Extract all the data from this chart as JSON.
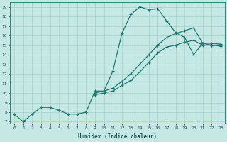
{
  "xlabel": "Humidex (Indice chaleur)",
  "background_color": "#c5e8e5",
  "grid_color": "#a8d4d0",
  "line_color": "#1e7870",
  "xlim": [
    -0.5,
    23.5
  ],
  "ylim": [
    6.8,
    19.5
  ],
  "x_ticks": [
    0,
    1,
    2,
    3,
    4,
    5,
    6,
    7,
    8,
    9,
    10,
    11,
    12,
    13,
    14,
    15,
    16,
    17,
    18,
    19,
    20,
    21,
    22,
    23
  ],
  "y_ticks": [
    7,
    8,
    9,
    10,
    11,
    12,
    13,
    14,
    15,
    16,
    17,
    18,
    19
  ],
  "line1_x": [
    0,
    1,
    2,
    3,
    4,
    5,
    6,
    7,
    8,
    9,
    10,
    11,
    12,
    13,
    14,
    15,
    16,
    17,
    18,
    19,
    20,
    21,
    22,
    23
  ],
  "line1_y": [
    7.8,
    7.0,
    7.8,
    8.5,
    8.5,
    8.2,
    7.8,
    7.8,
    8.0,
    10.2,
    10.2,
    12.3,
    16.2,
    18.2,
    19.0,
    18.7,
    18.8,
    17.5,
    16.3,
    15.8,
    14.0,
    15.2,
    15.0,
    15.0
  ],
  "line2_x": [
    9,
    10,
    11,
    12,
    13,
    14,
    15,
    16,
    17,
    18,
    19,
    20,
    21,
    22,
    23
  ],
  "line2_y": [
    10.0,
    10.2,
    10.5,
    11.2,
    12.0,
    13.0,
    14.0,
    15.0,
    15.8,
    16.2,
    16.5,
    16.8,
    15.2,
    15.2,
    15.1
  ],
  "line3_x": [
    9,
    10,
    11,
    12,
    13,
    14,
    15,
    16,
    17,
    18,
    19,
    20,
    21,
    22,
    23
  ],
  "line3_y": [
    9.8,
    10.0,
    10.2,
    10.8,
    11.3,
    12.2,
    13.2,
    14.2,
    14.8,
    15.0,
    15.3,
    15.5,
    15.0,
    15.0,
    14.9
  ]
}
